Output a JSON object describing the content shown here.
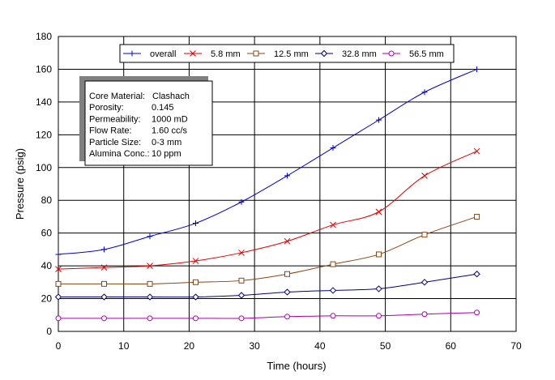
{
  "chart_data": {
    "type": "line",
    "title": "",
    "xlabel": "Time (hours)",
    "ylabel": "Pressure (psig)",
    "xlim": [
      0,
      70
    ],
    "ylim": [
      0,
      180
    ],
    "xticks": [
      0,
      10,
      20,
      30,
      40,
      50,
      60,
      70
    ],
    "yticks": [
      0,
      20,
      40,
      60,
      80,
      100,
      120,
      140,
      160,
      180
    ],
    "grid": true,
    "legend_position": "top",
    "series": [
      {
        "name": "overall",
        "color": "#0000cc",
        "marker": "plus",
        "x": [
          0,
          7,
          14,
          21,
          28,
          35,
          42,
          49,
          56,
          64
        ],
        "y": [
          47,
          50,
          58,
          66,
          79,
          95,
          112,
          129,
          146,
          160
        ]
      },
      {
        "name": "5.8 mm",
        "color": "#e00000",
        "marker": "x",
        "x": [
          0,
          7,
          14,
          21,
          28,
          35,
          42,
          49,
          56,
          64
        ],
        "y": [
          38,
          39,
          40,
          43,
          48,
          55,
          65,
          73,
          95,
          110
        ]
      },
      {
        "name": "12.5 mm",
        "color": "#8b4513",
        "marker": "square",
        "x": [
          0,
          7,
          14,
          21,
          28,
          35,
          42,
          49,
          56,
          64
        ],
        "y": [
          29,
          29,
          29,
          30,
          31,
          35,
          41,
          47,
          59,
          70
        ]
      },
      {
        "name": "32.8 mm",
        "color": "#000080",
        "marker": "diamond",
        "x": [
          0,
          7,
          14,
          21,
          28,
          35,
          42,
          49,
          56,
          64
        ],
        "y": [
          21,
          21,
          21,
          21,
          22,
          24,
          25,
          26,
          30,
          35
        ]
      },
      {
        "name": "56.5 mm",
        "color": "#aa00aa",
        "marker": "circle",
        "x": [
          0,
          7,
          14,
          21,
          28,
          35,
          42,
          49,
          56,
          64
        ],
        "y": [
          8,
          8,
          8,
          8,
          8,
          9,
          9.5,
          9.5,
          10.5,
          11.5
        ]
      }
    ],
    "annotation": {
      "rows": [
        {
          "label": "Core Material:",
          "value": "Clashach"
        },
        {
          "label": "Porosity:",
          "value": "0.145"
        },
        {
          "label": "Permeability:",
          "value": "1000 mD"
        },
        {
          "label": "Flow Rate:",
          "value": "1.60 cc/s"
        },
        {
          "label": "Particle Size:",
          "value": "0-3 mm"
        },
        {
          "label": "Alumina Conc.:",
          "value": "10 ppm"
        }
      ]
    }
  }
}
